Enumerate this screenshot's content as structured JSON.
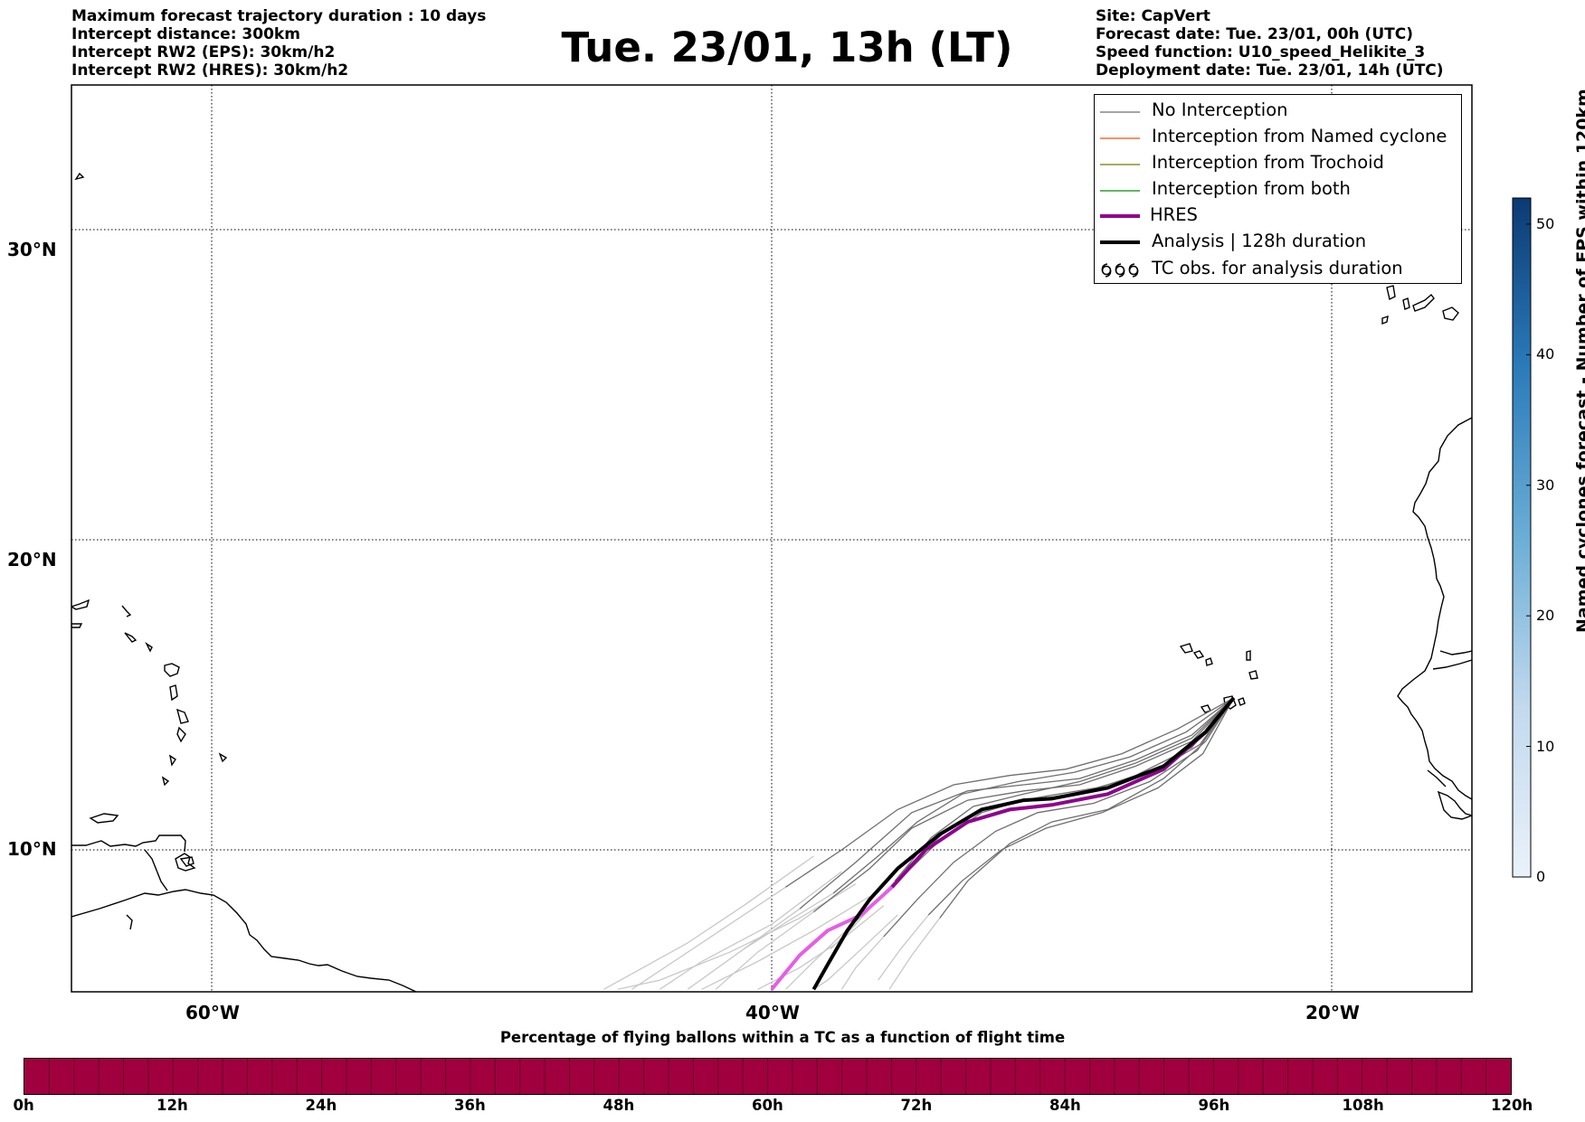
{
  "header": {
    "info_left": [
      "Maximum forecast trajectory duration : 10 days",
      "Intercept distance: 300km",
      "Intercept RW2 (EPS):  30km/h2",
      "Intercept RW2 (HRES): 30km/h2"
    ],
    "title": "Tue. 23/01, 13h (LT)",
    "info_right": [
      "Site: CapVert",
      "Forecast date: Tue. 23/01, 00h (UTC)",
      "Speed function: U10_speed_Helikite_3",
      "Deployment date: Tue. 23/01, 14h (UTC)"
    ]
  },
  "map": {
    "lon_range": [
      -65,
      -15
    ],
    "lat_range": [
      5.5,
      35
    ],
    "lat_gridlines": [
      10,
      20,
      30
    ],
    "lon_gridlines": [
      -60,
      -40,
      -20
    ],
    "lat_labels": [
      "10°N",
      "20°N",
      "30°N"
    ],
    "lon_labels": [
      "60°W",
      "40°W",
      "20°W"
    ],
    "grid": "dotted",
    "colors": {
      "no_interception": "#6e6e6e",
      "no_interception_faded": "#c8c8c8",
      "named_cyclone": "#ff6a33",
      "trochoid": "#8c8f2a",
      "both": "#2e9e2e",
      "hres": "#8e048e",
      "hres_faded": "#e55ee5",
      "analysis": "#000000"
    },
    "launch_point": {
      "lon": -23.5,
      "lat": 14.9
    },
    "analysis_track": [
      [
        -23.5,
        14.9
      ],
      [
        -24.5,
        13.8
      ],
      [
        -26.0,
        12.7
      ],
      [
        -28.0,
        12.0
      ],
      [
        -30.0,
        11.65
      ],
      [
        -31.0,
        11.6
      ],
      [
        -32.5,
        11.3
      ],
      [
        -34.0,
        10.5
      ],
      [
        -35.5,
        9.4
      ],
      [
        -36.5,
        8.4
      ],
      [
        -37.3,
        7.4
      ],
      [
        -38.0,
        6.3
      ],
      [
        -38.5,
        5.5
      ]
    ],
    "hres_track": [
      [
        -23.5,
        14.9
      ],
      [
        -24.5,
        13.8
      ],
      [
        -26.0,
        12.6
      ],
      [
        -28.0,
        11.8
      ],
      [
        -30.0,
        11.45
      ],
      [
        -31.5,
        11.3
      ],
      [
        -33.0,
        10.9
      ],
      [
        -34.5,
        10.0
      ],
      [
        -35.7,
        8.8
      ],
      [
        -36.8,
        7.9
      ],
      [
        -38.0,
        7.4
      ],
      [
        -39.0,
        6.6
      ],
      [
        -40.0,
        5.5
      ]
    ],
    "ensemble_tracks": [
      [
        [
          -23.5,
          14.9
        ],
        [
          -25.0,
          13.7
        ],
        [
          -27.0,
          12.9
        ],
        [
          -29.0,
          12.3
        ],
        [
          -31.0,
          12.1
        ],
        [
          -33.0,
          11.9
        ],
        [
          -35.0,
          11.2
        ],
        [
          -37.0,
          9.6
        ],
        [
          -39.0,
          8.1
        ],
        [
          -41.0,
          6.8
        ],
        [
          -43.0,
          5.5
        ]
      ],
      [
        [
          -23.5,
          14.9
        ],
        [
          -25.0,
          13.5
        ],
        [
          -27.0,
          12.7
        ],
        [
          -29.0,
          12.1
        ],
        [
          -31.0,
          11.9
        ],
        [
          -33.0,
          11.6
        ],
        [
          -35.0,
          10.7
        ],
        [
          -36.5,
          9.4
        ],
        [
          -38.5,
          8.0
        ],
        [
          -40.5,
          6.7
        ],
        [
          -42.0,
          5.5
        ]
      ],
      [
        [
          -23.5,
          14.9
        ],
        [
          -25.0,
          13.3
        ],
        [
          -27.0,
          12.4
        ],
        [
          -29.0,
          11.8
        ],
        [
          -31.0,
          11.6
        ],
        [
          -32.5,
          11.2
        ],
        [
          -34.0,
          10.3
        ],
        [
          -35.5,
          9.0
        ],
        [
          -37.0,
          7.7
        ],
        [
          -38.5,
          6.4
        ],
        [
          -39.5,
          5.5
        ]
      ],
      [
        [
          -23.5,
          14.9
        ],
        [
          -24.8,
          13.2
        ],
        [
          -26.5,
          12.2
        ],
        [
          -28.5,
          11.5
        ],
        [
          -30.5,
          11.2
        ],
        [
          -32.0,
          10.6
        ],
        [
          -33.5,
          9.6
        ],
        [
          -34.8,
          8.4
        ],
        [
          -36.0,
          7.2
        ],
        [
          -37.0,
          6.2
        ],
        [
          -37.5,
          5.5
        ]
      ],
      [
        [
          -23.5,
          14.9
        ],
        [
          -24.5,
          13.5
        ],
        [
          -26.0,
          12.3
        ],
        [
          -28.0,
          11.3
        ],
        [
          -30.0,
          10.9
        ],
        [
          -31.5,
          10.2
        ],
        [
          -33.0,
          9.0
        ],
        [
          -34.0,
          7.8
        ],
        [
          -35.0,
          6.6
        ],
        [
          -35.8,
          5.5
        ]
      ],
      [
        [
          -23.5,
          14.9
        ],
        [
          -25.5,
          13.9
        ],
        [
          -27.5,
          13.1
        ],
        [
          -29.5,
          12.6
        ],
        [
          -31.5,
          12.4
        ],
        [
          -33.5,
          12.1
        ],
        [
          -35.5,
          11.3
        ],
        [
          -37.5,
          10.0
        ],
        [
          -39.5,
          8.8
        ],
        [
          -41.5,
          7.6
        ],
        [
          -43.5,
          6.4
        ],
        [
          -45.0,
          5.5
        ]
      ],
      [
        [
          -23.5,
          14.9
        ],
        [
          -25.2,
          13.8
        ],
        [
          -27.2,
          13.0
        ],
        [
          -29.2,
          12.5
        ],
        [
          -31.2,
          12.2
        ],
        [
          -33.2,
          11.8
        ],
        [
          -34.8,
          10.9
        ],
        [
          -36.2,
          9.8
        ],
        [
          -37.8,
          8.6
        ],
        [
          -39.6,
          7.6
        ],
        [
          -41.0,
          6.8
        ]
      ],
      [
        [
          -23.5,
          14.9
        ],
        [
          -24.7,
          13.4
        ],
        [
          -26.4,
          12.5
        ],
        [
          -28.4,
          12.0
        ],
        [
          -30.4,
          11.7
        ],
        [
          -32.2,
          11.4
        ],
        [
          -33.8,
          10.6
        ],
        [
          -35.2,
          9.4
        ],
        [
          -36.4,
          8.2
        ],
        [
          -37.6,
          7.0
        ]
      ],
      [
        [
          -23.5,
          14.9
        ],
        [
          -25.0,
          13.6
        ],
        [
          -27.0,
          12.8
        ],
        [
          -29.0,
          12.2
        ],
        [
          -31.0,
          11.8
        ],
        [
          -32.8,
          11.4
        ],
        [
          -34.3,
          10.4
        ],
        [
          -35.6,
          9.0
        ],
        [
          -36.8,
          7.8
        ],
        [
          -37.9,
          6.8
        ]
      ],
      [
        [
          -23.5,
          14.9
        ],
        [
          -24.6,
          13.1
        ],
        [
          -26.2,
          12.0
        ],
        [
          -28.2,
          11.2
        ],
        [
          -30.2,
          10.7
        ],
        [
          -31.8,
          10.0
        ],
        [
          -33.2,
          9.0
        ],
        [
          -34.4,
          7.9
        ],
        [
          -35.4,
          6.8
        ],
        [
          -36.2,
          5.8
        ]
      ]
    ],
    "faded_tracks": [
      [
        [
          -37.0,
          8.9
        ],
        [
          -39.0,
          7.8
        ],
        [
          -41.5,
          6.7
        ],
        [
          -44.0,
          5.8
        ],
        [
          -45.5,
          5.5
        ]
      ],
      [
        [
          -36.5,
          8.5
        ],
        [
          -38.5,
          7.4
        ],
        [
          -40.5,
          6.4
        ],
        [
          -42.5,
          5.5
        ]
      ],
      [
        [
          -36.0,
          8.2
        ],
        [
          -37.5,
          7.1
        ],
        [
          -39.0,
          6.2
        ],
        [
          -40.5,
          5.5
        ]
      ],
      [
        [
          -37.5,
          9.3
        ],
        [
          -40.0,
          7.6
        ],
        [
          -42.5,
          6.4
        ],
        [
          -44.0,
          5.5
        ]
      ],
      [
        [
          -35.5,
          7.9
        ],
        [
          -36.8,
          6.8
        ],
        [
          -38.0,
          5.8
        ],
        [
          -38.5,
          5.5
        ]
      ],
      [
        [
          -38.5,
          9.8
        ],
        [
          -41.0,
          8.2
        ],
        [
          -43.0,
          7.0
        ],
        [
          -45.0,
          6.0
        ],
        [
          -46.0,
          5.5
        ]
      ]
    ]
  },
  "legend": [
    {
      "label": "No Interception",
      "color": "#6e6e6e",
      "width": 1.2,
      "symbol": "line"
    },
    {
      "label": "Interception from Named cyclone",
      "color": "#ff6a33",
      "width": 1.5,
      "symbol": "line"
    },
    {
      "label": "Interception from Trochoid",
      "color": "#8c8f2a",
      "width": 1.5,
      "symbol": "line"
    },
    {
      "label": "Interception from both",
      "color": "#2e9e2e",
      "width": 1.5,
      "symbol": "line"
    },
    {
      "label": "HRES",
      "color": "#8e048e",
      "width": 4,
      "symbol": "line"
    },
    {
      "label": "Analysis | 128h duration",
      "color": "#000000",
      "width": 4,
      "symbol": "line"
    },
    {
      "label": "TC obs. for analysis duration",
      "color": "#000000",
      "width": 1,
      "symbol": "tc-icons"
    }
  ],
  "colorbar": {
    "title": "Named cyclones forecast - Number of EPS within 120km",
    "range": [
      0,
      52
    ],
    "ticks": [
      0,
      10,
      20,
      30,
      40,
      50
    ],
    "color_low": "#e8f0f9",
    "color_high": "#0b3a73"
  },
  "timeline": {
    "title": "Percentage of flying ballons within a TC as a function of flight time",
    "ticks": [
      "0h",
      "12h",
      "24h",
      "36h",
      "48h",
      "60h",
      "72h",
      "84h",
      "96h",
      "108h",
      "120h"
    ],
    "bar_color": "#a0003e",
    "segments": 60,
    "range_h": [
      0,
      120
    ]
  }
}
